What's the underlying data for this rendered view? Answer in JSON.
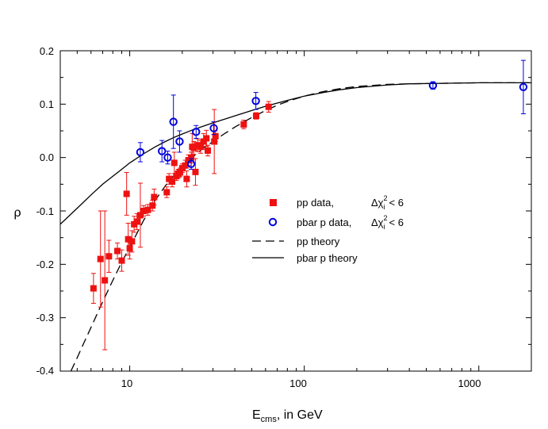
{
  "chart_data": {
    "type": "scatter",
    "title": "",
    "xlabel_main": "E",
    "xlabel_sub": "cms",
    "xlabel_rest": ", in GeV",
    "ylabel": "ρ",
    "x_scale": "log",
    "xlim": [
      4,
      2000
    ],
    "ylim": [
      -0.4,
      0.2
    ],
    "grid": false,
    "x_ticks": [
      10,
      100,
      1000
    ],
    "x_tick_labels": [
      "10",
      "100",
      "1000"
    ],
    "y_ticks": [
      -0.4,
      -0.3,
      -0.2,
      -0.1,
      0.0,
      0.1,
      0.2
    ],
    "y_tick_labels": [
      "-0.4",
      "-0.3",
      "-0.2",
      "-0.1",
      "0.0",
      "0.1",
      "0.2"
    ],
    "legend": {
      "placement": "center-right",
      "entries": [
        {
          "marker": "filled-square",
          "color": "#ee1111",
          "text": "pp       data,",
          "chi_text": "Δχ² i <  6"
        },
        {
          "marker": "open-circle",
          "color": "#0000dd",
          "text": "pbar p data,",
          "chi_text": "Δχ² i <  6"
        },
        {
          "marker": "dashed-line",
          "color": "#000000",
          "text": "pp            theory"
        },
        {
          "marker": "solid-line",
          "color": "#000000",
          "text": "pbar p       theory"
        }
      ],
      "chi_symbol": "Δχ",
      "chi_sup": "2",
      "chi_sub": "i",
      "chi_rel": "<  6"
    },
    "series": [
      {
        "name": "pp data",
        "marker": "filled-square",
        "color": "#ee1111",
        "points": [
          {
            "x": 6.2,
            "y": -0.245,
            "err": 0.028
          },
          {
            "x": 6.8,
            "y": -0.19,
            "err": 0.09
          },
          {
            "x": 7.2,
            "y": -0.23,
            "err": 0.13
          },
          {
            "x": 7.6,
            "y": -0.185,
            "err": 0.03
          },
          {
            "x": 8.5,
            "y": -0.175,
            "err": 0.015
          },
          {
            "x": 9.0,
            "y": -0.193,
            "err": 0.02
          },
          {
            "x": 9.6,
            "y": -0.068,
            "err": 0.04
          },
          {
            "x": 9.8,
            "y": -0.153,
            "err": 0.03
          },
          {
            "x": 10.0,
            "y": -0.17,
            "err": 0.02
          },
          {
            "x": 10.3,
            "y": -0.157,
            "err": 0.02
          },
          {
            "x": 10.6,
            "y": -0.125,
            "err": 0.015
          },
          {
            "x": 11.0,
            "y": -0.12,
            "err": 0.015
          },
          {
            "x": 11.5,
            "y": -0.108,
            "err": 0.06
          },
          {
            "x": 12.0,
            "y": -0.1,
            "err": 0.01
          },
          {
            "x": 12.7,
            "y": -0.098,
            "err": 0.01
          },
          {
            "x": 13.5,
            "y": -0.09,
            "err": 0.01
          },
          {
            "x": 13.8,
            "y": -0.074,
            "err": 0.015
          },
          {
            "x": 16.3,
            "y": -0.065,
            "err": 0.01
          },
          {
            "x": 16.8,
            "y": -0.04,
            "err": 0.01
          },
          {
            "x": 17.5,
            "y": -0.045,
            "err": 0.01
          },
          {
            "x": 18.0,
            "y": -0.01,
            "err": 0.02
          },
          {
            "x": 18.5,
            "y": -0.035,
            "err": 0.008
          },
          {
            "x": 19.0,
            "y": -0.03,
            "err": 0.008
          },
          {
            "x": 19.4,
            "y": -0.028,
            "err": 0.008
          },
          {
            "x": 20.0,
            "y": -0.02,
            "err": 0.008
          },
          {
            "x": 20.8,
            "y": -0.015,
            "err": 0.01
          },
          {
            "x": 21.2,
            "y": -0.04,
            "err": 0.015
          },
          {
            "x": 21.7,
            "y": -0.005,
            "err": 0.01
          },
          {
            "x": 22.5,
            "y": 0.0,
            "err": 0.01
          },
          {
            "x": 22.8,
            "y": 0.02,
            "err": 0.025
          },
          {
            "x": 23.3,
            "y": 0.018,
            "err": 0.012
          },
          {
            "x": 23.8,
            "y": -0.027,
            "err": 0.025
          },
          {
            "x": 24.5,
            "y": 0.023,
            "err": 0.012
          },
          {
            "x": 25.5,
            "y": 0.02,
            "err": 0.012
          },
          {
            "x": 26.5,
            "y": 0.03,
            "err": 0.015
          },
          {
            "x": 27.5,
            "y": 0.036,
            "err": 0.015
          },
          {
            "x": 28.0,
            "y": 0.013,
            "err": 0.01
          },
          {
            "x": 30.5,
            "y": 0.03,
            "err": 0.06
          },
          {
            "x": 31.0,
            "y": 0.04,
            "err": 0.01
          },
          {
            "x": 45.0,
            "y": 0.062,
            "err": 0.008
          },
          {
            "x": 53.0,
            "y": 0.078,
            "err": 0.006
          },
          {
            "x": 62.5,
            "y": 0.095,
            "err": 0.01
          }
        ]
      },
      {
        "name": "pbar p data",
        "marker": "open-circle",
        "color": "#0000dd",
        "points": [
          {
            "x": 11.5,
            "y": 0.01,
            "err": 0.018
          },
          {
            "x": 15.3,
            "y": 0.012,
            "err": 0.02
          },
          {
            "x": 16.5,
            "y": 0.0,
            "err": 0.012
          },
          {
            "x": 17.8,
            "y": 0.067,
            "err": 0.05
          },
          {
            "x": 19.3,
            "y": 0.03,
            "err": 0.02
          },
          {
            "x": 22.5,
            "y": -0.012,
            "err": 0.01
          },
          {
            "x": 24.0,
            "y": 0.048,
            "err": 0.012
          },
          {
            "x": 30.3,
            "y": 0.055,
            "err": 0.012
          },
          {
            "x": 52.8,
            "y": 0.106,
            "err": 0.016
          },
          {
            "x": 546.0,
            "y": 0.135,
            "err": 0.007
          },
          {
            "x": 1800.0,
            "y": 0.132,
            "err": 0.05
          }
        ]
      },
      {
        "name": "pp theory",
        "style": "dashed",
        "color": "#000000",
        "x": [
          4.6,
          5.0,
          5.5,
          6,
          7,
          8,
          9,
          10,
          12,
          14,
          16,
          18,
          20,
          23,
          26,
          30,
          35,
          40,
          50,
          60,
          70,
          80,
          100,
          130,
          160,
          200,
          300,
          400,
          600,
          1000,
          1500,
          2000
        ],
        "y": [
          -0.4,
          -0.375,
          -0.345,
          -0.318,
          -0.27,
          -0.23,
          -0.196,
          -0.168,
          -0.118,
          -0.08,
          -0.053,
          -0.033,
          -0.018,
          0.001,
          0.016,
          0.03,
          0.045,
          0.057,
          0.075,
          0.088,
          0.098,
          0.105,
          0.115,
          0.124,
          0.129,
          0.133,
          0.137,
          0.138,
          0.139,
          0.14,
          0.14,
          0.14
        ]
      },
      {
        "name": "pbar p theory",
        "style": "solid",
        "color": "#000000",
        "x": [
          4,
          5,
          6,
          7,
          8,
          9,
          10,
          12,
          14,
          16,
          18,
          20,
          23,
          26,
          30,
          35,
          40,
          50,
          60,
          70,
          80,
          100,
          130,
          160,
          200,
          300,
          400,
          600,
          1000,
          1500,
          2000
        ],
        "y": [
          -0.125,
          -0.095,
          -0.07,
          -0.05,
          -0.035,
          -0.022,
          -0.01,
          0.007,
          0.02,
          0.03,
          0.038,
          0.044,
          0.052,
          0.058,
          0.065,
          0.072,
          0.078,
          0.088,
          0.096,
          0.102,
          0.107,
          0.115,
          0.122,
          0.127,
          0.131,
          0.136,
          0.138,
          0.139,
          0.14,
          0.14,
          0.14
        ]
      }
    ]
  }
}
